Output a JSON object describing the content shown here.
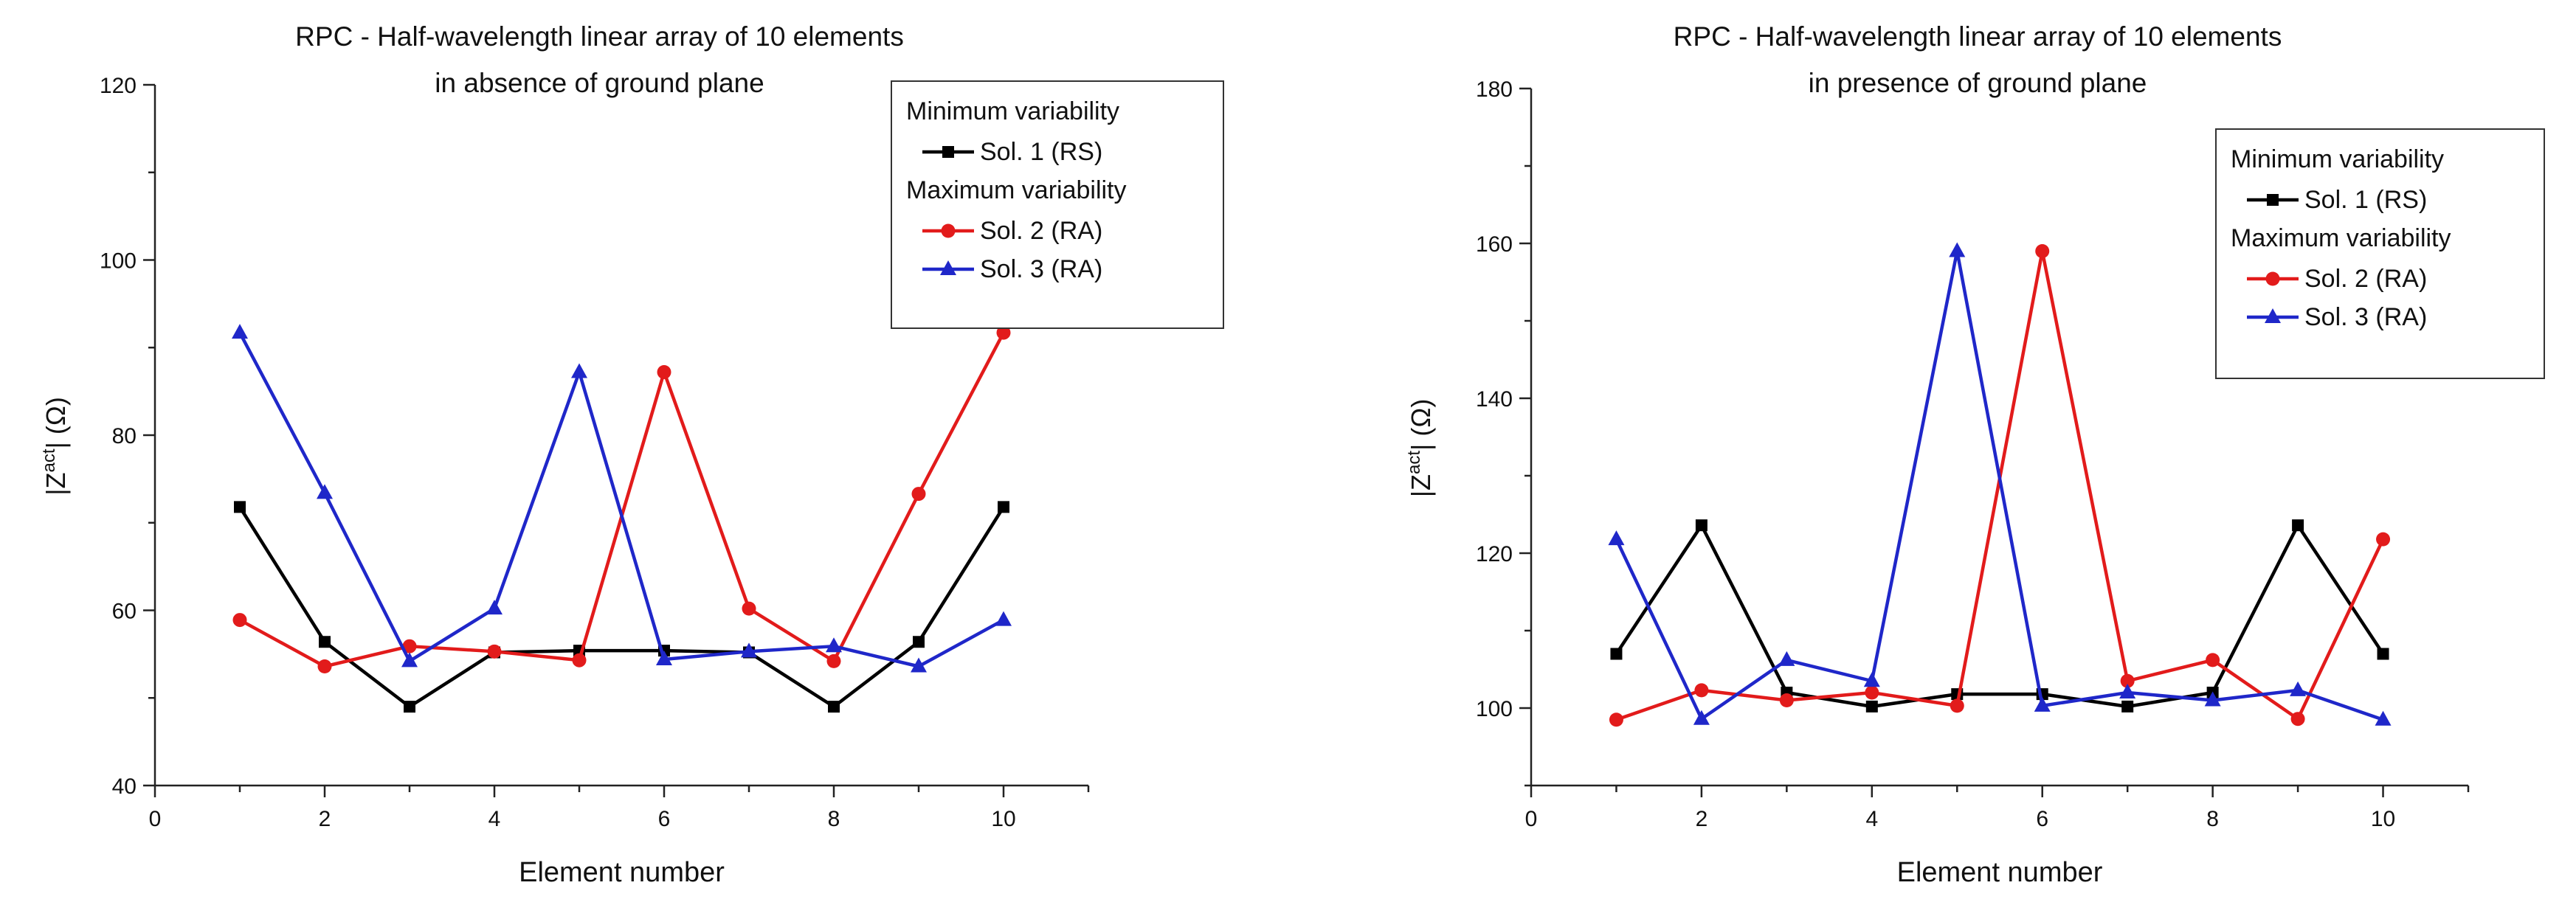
{
  "chart_data": [
    {
      "type": "line",
      "title": "RPC - Half-wavelength linear array of 10 elements",
      "subtitle": "in absence of ground plane",
      "xlabel": "Element number",
      "ylabel_main": "|Z",
      "ylabel_sup": "act",
      "ylabel_unit": "| (Ω)",
      "xlim": [
        0,
        11
      ],
      "ylim": [
        40,
        120
      ],
      "xticks": [
        0,
        2,
        4,
        6,
        8,
        10
      ],
      "yticks": [
        40,
        60,
        80,
        100,
        120
      ],
      "grid": false,
      "legend_position": "top-right",
      "legend_groups": [
        {
          "heading": "Minimum variability",
          "series": [
            0
          ]
        },
        {
          "heading": "Maximum variability",
          "series": [
            1,
            2
          ]
        }
      ],
      "x": [
        1,
        2,
        3,
        4,
        5,
        6,
        7,
        8,
        9,
        10
      ],
      "series": [
        {
          "name": "Sol. 1 (RS)",
          "color": "#000000",
          "marker": "square",
          "values": [
            71.8,
            56.4,
            49.0,
            55.2,
            55.4,
            55.4,
            55.2,
            49.0,
            56.4,
            71.8
          ]
        },
        {
          "name": "Sol. 2 (RA)",
          "color": "#e21b1b",
          "marker": "circle",
          "values": [
            58.9,
            53.6,
            55.9,
            55.3,
            54.3,
            87.2,
            60.2,
            54.2,
            73.3,
            91.7
          ]
        },
        {
          "name": "Sol. 3 (RA)",
          "color": "#1f27c9",
          "marker": "triangle",
          "values": [
            91.7,
            73.4,
            54.2,
            60.2,
            87.2,
            54.4,
            55.3,
            55.9,
            53.6,
            58.9
          ]
        }
      ]
    },
    {
      "type": "line",
      "title": "RPC - Half-wavelength linear array of 10 elements",
      "subtitle": "in presence of ground plane",
      "xlabel": "Element number",
      "ylabel_main": "|Z",
      "ylabel_sup": "act",
      "ylabel_unit": "| (Ω)",
      "xlim": [
        0,
        11
      ],
      "ylim": [
        90,
        180
      ],
      "xticks": [
        0,
        2,
        4,
        6,
        8,
        10
      ],
      "yticks": [
        100,
        120,
        140,
        160,
        180
      ],
      "grid": false,
      "legend_position": "top-right",
      "legend_groups": [
        {
          "heading": "Minimum variability",
          "series": [
            0
          ]
        },
        {
          "heading": "Maximum variability",
          "series": [
            1,
            2
          ]
        }
      ],
      "x": [
        1,
        2,
        3,
        4,
        5,
        6,
        7,
        8,
        9,
        10
      ],
      "series": [
        {
          "name": "Sol. 1 (RS)",
          "color": "#000000",
          "marker": "square",
          "values": [
            107.0,
            123.6,
            102.0,
            100.2,
            101.8,
            101.8,
            100.2,
            102.0,
            123.6,
            107.0
          ]
        },
        {
          "name": "Sol. 2 (RA)",
          "color": "#e21b1b",
          "marker": "circle",
          "values": [
            98.5,
            102.3,
            101.0,
            102.0,
            100.3,
            159.0,
            103.5,
            106.2,
            98.6,
            121.8
          ]
        },
        {
          "name": "Sol. 3 (RA)",
          "color": "#1f27c9",
          "marker": "triangle",
          "values": [
            121.8,
            98.6,
            106.2,
            103.5,
            159.0,
            100.3,
            102.0,
            101.0,
            102.3,
            98.5
          ]
        }
      ]
    }
  ]
}
